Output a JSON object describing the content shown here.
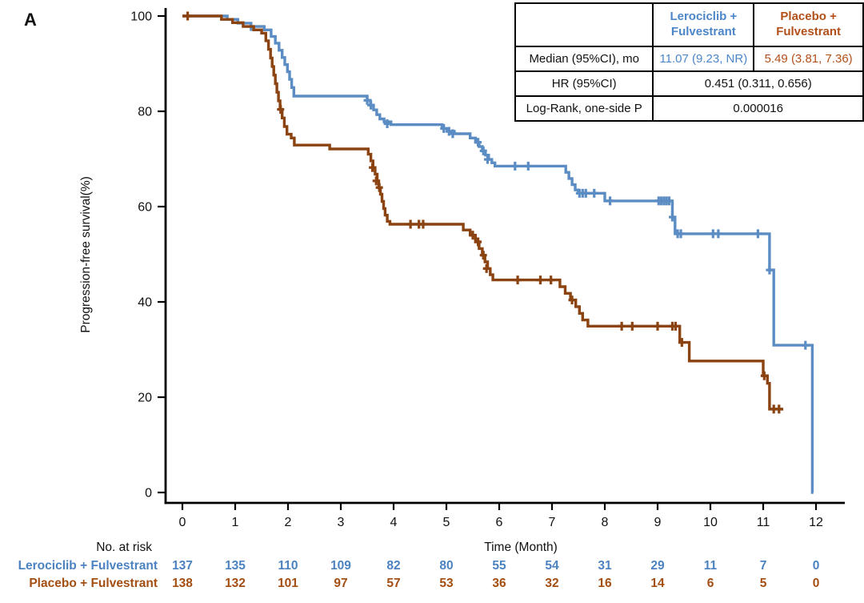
{
  "panel_label": "A",
  "colors": {
    "blue_line": "#5B8DC4",
    "brown_line": "#8B4311",
    "blue_text": "#4C86C9",
    "brown_text": "#B2501A",
    "risk_blue": "#4C82C0",
    "risk_brown": "#A34E12",
    "axis": "#000000"
  },
  "stats_table": {
    "header": {
      "col0": "",
      "col1": "Lerociclib +\nFulvestrant",
      "col2": "Placebo +\nFulvestrant"
    },
    "rows": [
      {
        "label": "Median (95%CI), mo",
        "col1": "11.07 (9.23, NR)",
        "col2": "5.49 (3.81, 7.36)"
      },
      {
        "label": "HR (95%CI)",
        "value": "0.451 (0.311, 0.656)"
      },
      {
        "label": "Log-Rank, one-side P",
        "value": "0.000016"
      }
    ]
  },
  "chart_data": {
    "type": "line",
    "subtype": "kaplan-meier-step",
    "title": "",
    "xlabel": "Time (Month)",
    "ylabel": "Progression-free survival(%)",
    "xlim": [
      0,
      12
    ],
    "ylim": [
      0,
      100
    ],
    "xticks": [
      0,
      1,
      2,
      3,
      4,
      5,
      6,
      7,
      8,
      9,
      10,
      11,
      12
    ],
    "yticks": [
      0,
      20,
      40,
      60,
      80,
      100
    ],
    "grid": false,
    "legend_position": "none",
    "series": [
      {
        "name": "Lerociclib + Fulvestrant",
        "color": "#5B8DC4",
        "median_95ci": "11.07 (9.23, NR)",
        "end_time": 11.95,
        "steps": [
          [
            0,
            100
          ],
          [
            0.85,
            99.3
          ],
          [
            1.05,
            98.5
          ],
          [
            1.3,
            97.8
          ],
          [
            1.55,
            97.1
          ],
          [
            1.68,
            95.7
          ],
          [
            1.76,
            94.3
          ],
          [
            1.83,
            92.8
          ],
          [
            1.89,
            91.3
          ],
          [
            1.94,
            89.8
          ],
          [
            1.99,
            88.3
          ],
          [
            2.03,
            86.7
          ],
          [
            2.07,
            85.0
          ],
          [
            2.11,
            83.2
          ],
          [
            3.5,
            82.3
          ],
          [
            3.56,
            81.3
          ],
          [
            3.62,
            80.3
          ],
          [
            3.68,
            79.3
          ],
          [
            3.74,
            78.4
          ],
          [
            3.82,
            77.8
          ],
          [
            3.95,
            77.2
          ],
          [
            4.92,
            76.4
          ],
          [
            5.02,
            75.8
          ],
          [
            5.15,
            75.3
          ],
          [
            5.45,
            74.4
          ],
          [
            5.55,
            73.5
          ],
          [
            5.62,
            72.6
          ],
          [
            5.68,
            71.7
          ],
          [
            5.74,
            70.8
          ],
          [
            5.8,
            69.9
          ],
          [
            5.86,
            69.2
          ],
          [
            5.92,
            68.5
          ],
          [
            7.26,
            67.2
          ],
          [
            7.32,
            65.9
          ],
          [
            7.38,
            64.6
          ],
          [
            7.44,
            63.5
          ],
          [
            7.5,
            62.8
          ],
          [
            8.0,
            61.2
          ],
          [
            9.28,
            57.8
          ],
          [
            9.33,
            54.3
          ],
          [
            11.12,
            46.7
          ],
          [
            11.2,
            30.9
          ],
          [
            11.93,
            0
          ]
        ],
        "censors": [
          [
            1.3,
            97.8
          ],
          [
            3.5,
            82.3
          ],
          [
            3.57,
            81.3
          ],
          [
            3.88,
            77.4
          ],
          [
            4.95,
            76.4
          ],
          [
            5.05,
            75.8
          ],
          [
            5.12,
            75.3
          ],
          [
            5.6,
            73.5
          ],
          [
            5.7,
            71.7
          ],
          [
            5.78,
            69.9
          ],
          [
            6.3,
            68.5
          ],
          [
            6.55,
            68.5
          ],
          [
            7.52,
            62.8
          ],
          [
            7.58,
            62.8
          ],
          [
            7.64,
            62.8
          ],
          [
            7.8,
            62.8
          ],
          [
            8.1,
            61.2
          ],
          [
            9.02,
            61.2
          ],
          [
            9.07,
            61.2
          ],
          [
            9.12,
            61.2
          ],
          [
            9.17,
            61.2
          ],
          [
            9.22,
            61.2
          ],
          [
            9.28,
            57.8
          ],
          [
            9.38,
            54.3
          ],
          [
            9.44,
            54.3
          ],
          [
            10.05,
            54.3
          ],
          [
            10.15,
            54.3
          ],
          [
            10.9,
            54.3
          ],
          [
            11.12,
            46.7
          ],
          [
            11.8,
            30.9
          ]
        ]
      },
      {
        "name": "Placebo + Fulvestrant",
        "color": "#8B4311",
        "median_95ci": "5.49 (3.81, 7.36)",
        "end_time": 11.38,
        "steps": [
          [
            0,
            100
          ],
          [
            0.74,
            99.3
          ],
          [
            0.95,
            98.6
          ],
          [
            1.15,
            97.8
          ],
          [
            1.35,
            97.1
          ],
          [
            1.5,
            96.4
          ],
          [
            1.58,
            94.8
          ],
          [
            1.63,
            93.0
          ],
          [
            1.67,
            91.2
          ],
          [
            1.7,
            89.4
          ],
          [
            1.73,
            87.6
          ],
          [
            1.76,
            85.8
          ],
          [
            1.79,
            84.0
          ],
          [
            1.82,
            82.2
          ],
          [
            1.85,
            80.4
          ],
          [
            1.89,
            78.6
          ],
          [
            1.93,
            76.8
          ],
          [
            1.98,
            75.2
          ],
          [
            2.06,
            74.4
          ],
          [
            2.12,
            72.9
          ],
          [
            2.79,
            72.1
          ],
          [
            3.52,
            71.0
          ],
          [
            3.57,
            69.6
          ],
          [
            3.61,
            68.2
          ],
          [
            3.65,
            66.8
          ],
          [
            3.69,
            65.4
          ],
          [
            3.72,
            64.0
          ],
          [
            3.75,
            62.6
          ],
          [
            3.78,
            61.1
          ],
          [
            3.81,
            59.6
          ],
          [
            3.84,
            58.2
          ],
          [
            3.88,
            56.9
          ],
          [
            3.93,
            56.3
          ],
          [
            5.32,
            55.1
          ],
          [
            5.45,
            54.0
          ],
          [
            5.55,
            52.6
          ],
          [
            5.62,
            51.2
          ],
          [
            5.68,
            49.8
          ],
          [
            5.73,
            48.4
          ],
          [
            5.78,
            47.0
          ],
          [
            5.83,
            45.7
          ],
          [
            5.88,
            44.6
          ],
          [
            7.15,
            43.2
          ],
          [
            7.25,
            41.8
          ],
          [
            7.35,
            40.4
          ],
          [
            7.45,
            39.0
          ],
          [
            7.52,
            37.6
          ],
          [
            7.58,
            36.2
          ],
          [
            7.68,
            34.9
          ],
          [
            9.42,
            31.5
          ],
          [
            9.6,
            27.6
          ],
          [
            11.0,
            24.5
          ],
          [
            11.08,
            22.9
          ],
          [
            11.12,
            17.5
          ]
        ],
        "censors": [
          [
            0.1,
            100
          ],
          [
            1.86,
            80.4
          ],
          [
            3.6,
            68.2
          ],
          [
            3.67,
            65.4
          ],
          [
            3.73,
            64.0
          ],
          [
            4.32,
            56.3
          ],
          [
            4.48,
            56.3
          ],
          [
            4.56,
            56.3
          ],
          [
            5.5,
            54.0
          ],
          [
            5.6,
            52.6
          ],
          [
            5.7,
            49.8
          ],
          [
            5.76,
            47.0
          ],
          [
            6.35,
            44.6
          ],
          [
            6.78,
            44.6
          ],
          [
            6.98,
            44.6
          ],
          [
            7.38,
            40.4
          ],
          [
            8.32,
            34.9
          ],
          [
            8.52,
            34.9
          ],
          [
            9.0,
            34.9
          ],
          [
            9.28,
            34.9
          ],
          [
            9.34,
            34.9
          ],
          [
            9.46,
            31.5
          ],
          [
            11.02,
            24.5
          ],
          [
            11.2,
            17.5
          ],
          [
            11.3,
            17.5
          ]
        ]
      }
    ]
  },
  "risk_table": {
    "title": "No. at risk",
    "times": [
      0,
      1,
      2,
      3,
      4,
      5,
      6,
      7,
      8,
      9,
      10,
      11,
      12
    ],
    "rows": [
      {
        "name": "Lerociclib + Fulvestrant",
        "color": "#4C82C0",
        "values": [
          137,
          135,
          110,
          109,
          82,
          80,
          55,
          54,
          31,
          29,
          11,
          7,
          0
        ]
      },
      {
        "name": "Placebo + Fulvestrant",
        "color": "#A34E12",
        "values": [
          138,
          132,
          101,
          97,
          57,
          53,
          36,
          32,
          16,
          14,
          6,
          5,
          0
        ]
      }
    ]
  }
}
